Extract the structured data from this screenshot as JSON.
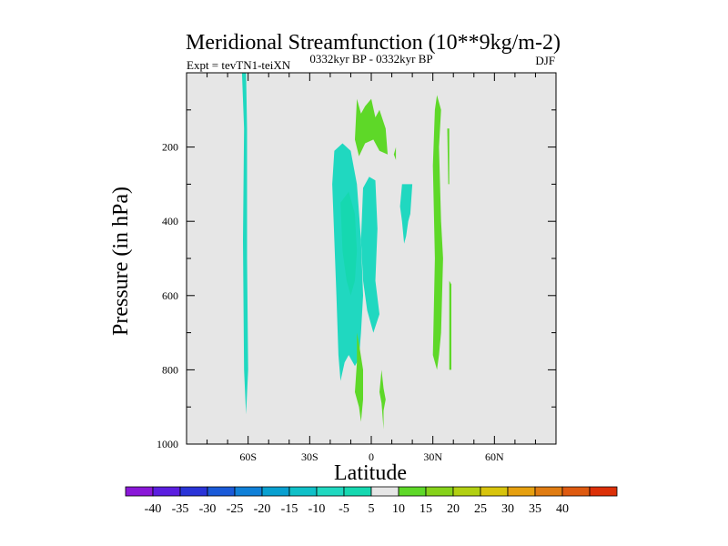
{
  "chart_data": {
    "type": "heatmap",
    "title": "Meridional Streamfunction (10**9kg/m-2)",
    "subtitle_left": "Expt = tevTN1-teiXN",
    "subtitle_center": "0332kyr BP - 0332kyr BP",
    "subtitle_right": "DJF",
    "xlabel": "Latitude",
    "ylabel": "Pressure (in hPa)",
    "xlim": [
      -90,
      90
    ],
    "ylim": [
      1000,
      0
    ],
    "x_ticks": [
      {
        "value": -60,
        "label": "60S"
      },
      {
        "value": -30,
        "label": "30S"
      },
      {
        "value": 0,
        "label": "0"
      },
      {
        "value": 30,
        "label": "30N"
      },
      {
        "value": 60,
        "label": "60N"
      }
    ],
    "y_ticks": [
      {
        "value": 200,
        "label": "200"
      },
      {
        "value": 400,
        "label": "400"
      },
      {
        "value": 600,
        "label": "600"
      },
      {
        "value": 800,
        "label": "800"
      },
      {
        "value": 1000,
        "label": "1000"
      }
    ],
    "background_color": "#e6e6e6",
    "colorbar": {
      "labels": [
        "-40",
        "-35",
        "-30",
        "-25",
        "-20",
        "-15",
        "-10",
        "-5",
        "5",
        "10",
        "15",
        "20",
        "25",
        "30",
        "35",
        "40"
      ],
      "colors": [
        "#8a18d8",
        "#5b1ee0",
        "#2a34d8",
        "#1a5ad8",
        "#1080d8",
        "#08a0d0",
        "#10c0c8",
        "#20d8c0",
        "#16d8b0",
        "#e6e6e6",
        "#5ed828",
        "#86d21a",
        "#b2d012",
        "#d8c40c",
        "#e6a010",
        "#e07c12",
        "#de5a10",
        "#dc3008"
      ]
    },
    "regions": [
      {
        "name": "southern-high-latitude-negative-band",
        "color": "#20d8c0",
        "points": [
          [
            -63,
            0
          ],
          [
            -61,
            0
          ],
          [
            -60.5,
            150
          ],
          [
            -60.5,
            500
          ],
          [
            -60,
            800
          ],
          [
            -61,
            920
          ],
          [
            -62,
            800
          ],
          [
            -62.5,
            450
          ],
          [
            -62,
            150
          ]
        ]
      },
      {
        "name": "tropical-negative-cell-outer",
        "color": "#20d8c0",
        "points": [
          [
            -18,
            210
          ],
          [
            -14,
            190
          ],
          [
            -10,
            210
          ],
          [
            -7,
            300
          ],
          [
            -5,
            450
          ],
          [
            -4,
            600
          ],
          [
            -5,
            700
          ],
          [
            -6,
            770
          ],
          [
            -8,
            790
          ],
          [
            -11,
            760
          ],
          [
            -13,
            780
          ],
          [
            -15,
            830
          ],
          [
            -16,
            760
          ],
          [
            -17,
            600
          ],
          [
            -18,
            450
          ],
          [
            -19,
            300
          ]
        ]
      },
      {
        "name": "tropical-negative-cell-inner",
        "color": "#16d8b0",
        "points": [
          [
            -15,
            350
          ],
          [
            -11,
            320
          ],
          [
            -8,
            380
          ],
          [
            -7,
            480
          ],
          [
            -8,
            560
          ],
          [
            -10,
            600
          ],
          [
            -12,
            560
          ],
          [
            -14,
            480
          ]
        ]
      },
      {
        "name": "equatorial-negative-lobe",
        "color": "#20d8c0",
        "points": [
          [
            -4,
            310
          ],
          [
            -1,
            280
          ],
          [
            2,
            290
          ],
          [
            3,
            420
          ],
          [
            2,
            560
          ],
          [
            4,
            650
          ],
          [
            1,
            700
          ],
          [
            -2,
            640
          ],
          [
            -4,
            560
          ],
          [
            -5,
            450
          ]
        ]
      },
      {
        "name": "upper-equatorial-positive-lobe",
        "color": "#5ed828",
        "points": [
          [
            -8,
            180
          ],
          [
            -7,
            70
          ],
          [
            -5,
            110
          ],
          [
            -3,
            90
          ],
          [
            0,
            70
          ],
          [
            2,
            120
          ],
          [
            4,
            100
          ],
          [
            7,
            150
          ],
          [
            8,
            220
          ],
          [
            4,
            210
          ],
          [
            1,
            180
          ],
          [
            -3,
            190
          ],
          [
            -6,
            225
          ]
        ]
      },
      {
        "name": "small-positive-speck",
        "color": "#5ed828",
        "points": [
          [
            11,
            220
          ],
          [
            12,
            200
          ],
          [
            12,
            235
          ]
        ]
      },
      {
        "name": "subtropical-negative-patch",
        "color": "#20d8c0",
        "points": [
          [
            15,
            300
          ],
          [
            20,
            300
          ],
          [
            19,
            380
          ],
          [
            18,
            400
          ],
          [
            17,
            440
          ],
          [
            16,
            460
          ],
          [
            15,
            400
          ],
          [
            14,
            360
          ]
        ]
      },
      {
        "name": "northern-positive-band",
        "color": "#5ed828",
        "points": [
          [
            32,
            60
          ],
          [
            34,
            100
          ],
          [
            33,
            200
          ],
          [
            34,
            400
          ],
          [
            35,
            500
          ],
          [
            34,
            700
          ],
          [
            33,
            760
          ],
          [
            32,
            800
          ],
          [
            30,
            760
          ],
          [
            31,
            500
          ],
          [
            30,
            250
          ],
          [
            31,
            100
          ]
        ]
      },
      {
        "name": "northern-positive-sliver-a",
        "color": "#5ed828",
        "points": [
          [
            37,
            150
          ],
          [
            38,
            150
          ],
          [
            38,
            300
          ],
          [
            37.5,
            300
          ]
        ]
      },
      {
        "name": "northern-positive-sliver-b",
        "color": "#5ed828",
        "points": [
          [
            38,
            560
          ],
          [
            39,
            570
          ],
          [
            39,
            800
          ],
          [
            38,
            800
          ]
        ]
      },
      {
        "name": "lower-positive-lobe-left",
        "color": "#5ed828",
        "points": [
          [
            -7,
            700
          ],
          [
            -6,
            730
          ],
          [
            -4,
            800
          ],
          [
            -4,
            880
          ],
          [
            -5,
            940
          ],
          [
            -6,
            900
          ],
          [
            -8,
            860
          ],
          [
            -7,
            780
          ]
        ]
      },
      {
        "name": "lower-positive-lobe-right",
        "color": "#5ed828",
        "points": [
          [
            5,
            800
          ],
          [
            6,
            850
          ],
          [
            7,
            880
          ],
          [
            6,
            910
          ],
          [
            6,
            960
          ],
          [
            5,
            890
          ],
          [
            4,
            860
          ]
        ]
      }
    ]
  }
}
